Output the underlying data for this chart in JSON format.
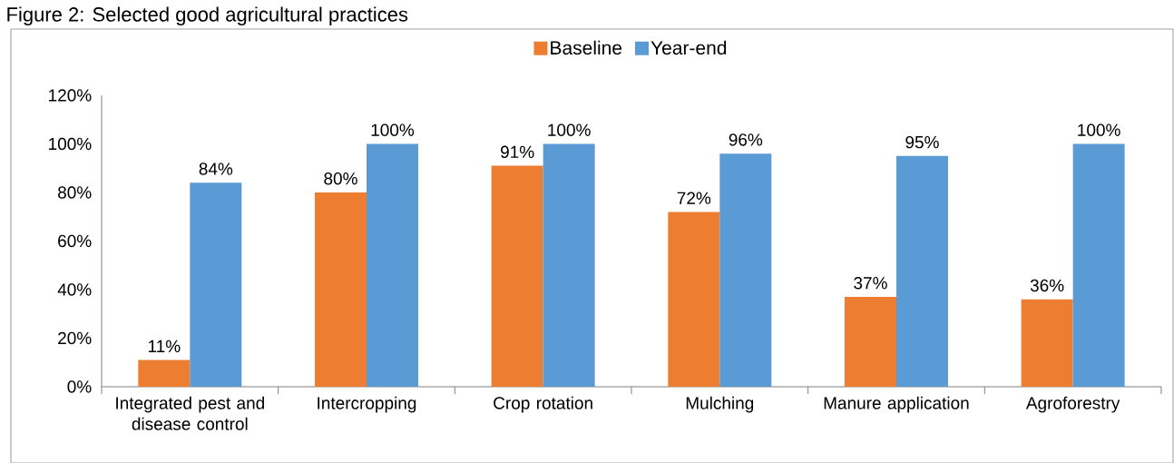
{
  "chart_data": {
    "type": "bar",
    "title": "Figure 2: Selected good agricultural practices",
    "categories": [
      "Integrated pest and disease control",
      "Intercropping",
      "Crop rotation",
      "Mulching",
      "Manure application",
      "Agroforestry"
    ],
    "series": [
      {
        "name": "Baseline",
        "color": "#ed7d31",
        "values": [
          11,
          80,
          91,
          72,
          37,
          36
        ],
        "value_labels": [
          "11%",
          "80%",
          "91%",
          "72%",
          "37%",
          "36%"
        ]
      },
      {
        "name": "Year-end",
        "color": "#5b9bd5",
        "values": [
          84,
          100,
          100,
          96,
          95,
          100
        ],
        "value_labels": [
          "84%",
          "100%",
          "100%",
          "96%",
          "95%",
          "100%"
        ]
      }
    ],
    "ylim": [
      0,
      120
    ],
    "yticks": [
      {
        "value": 0,
        "label": "0%"
      },
      {
        "value": 20,
        "label": "20%"
      },
      {
        "value": 40,
        "label": "40%"
      },
      {
        "value": 60,
        "label": "60%"
      },
      {
        "value": 80,
        "label": "80%"
      },
      {
        "value": 100,
        "label": "100%"
      },
      {
        "value": 120,
        "label": "120%"
      }
    ],
    "grid": false,
    "legend": "top"
  }
}
